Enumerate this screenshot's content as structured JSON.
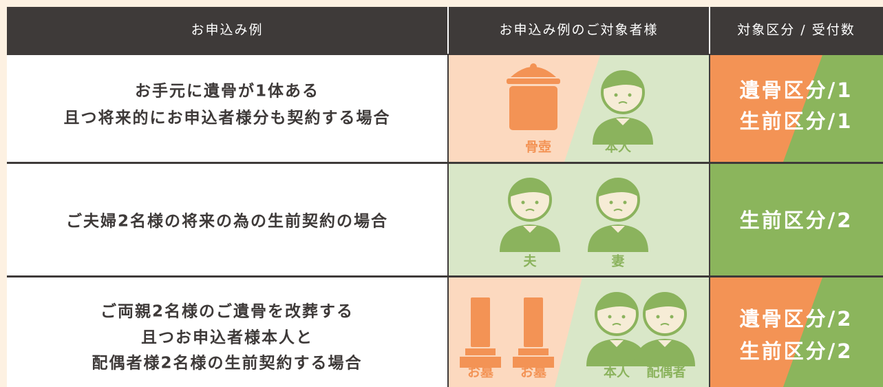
{
  "header": {
    "columns": [
      "お申込み例",
      "お申込み例のご対象者様",
      "対象区分 / 受付数"
    ]
  },
  "rows": [
    {
      "description": [
        "お手元に遺骨が1体ある",
        "且つ将来的にお申込者様分も契約する場合"
      ],
      "figure_labels": [
        "骨壺",
        "本人"
      ],
      "categories": [
        "遺骨区分/1",
        "生前区分/1"
      ]
    },
    {
      "description": [
        "ご夫婦2名様の将来の為の生前契約の場合"
      ],
      "figure_labels": [
        "夫",
        "妻"
      ],
      "categories": [
        "生前区分/2"
      ]
    },
    {
      "description": [
        "ご両親2名様のご遺骨を改葬する",
        "且つお申込者様本人と",
        "配偶者様2名様の生前契約する場合"
      ],
      "figure_labels": [
        "お墓",
        "お墓",
        "本人",
        "配偶者"
      ],
      "categories": [
        "遺骨区分/2",
        "生前区分/2"
      ]
    }
  ]
}
